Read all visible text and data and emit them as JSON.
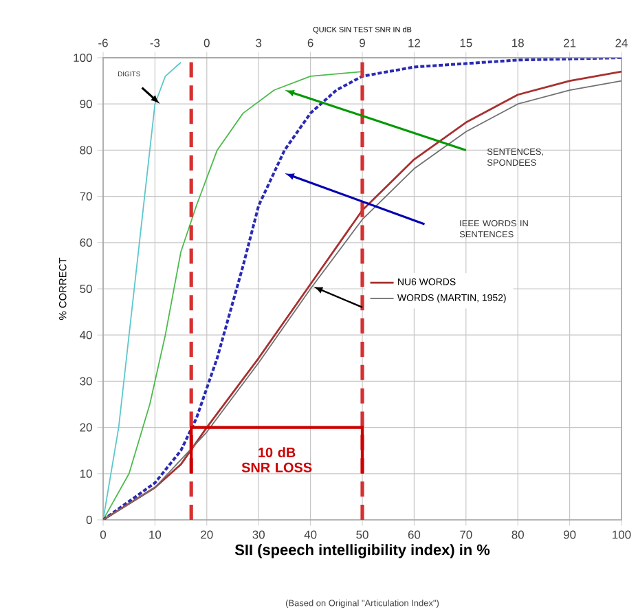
{
  "chart_data": {
    "type": "line",
    "xlabel": "SII (speech intelligibility index) in %",
    "ylabel": "% CORRECT",
    "x2label": "QUICK SIN TEST SNR IN dB",
    "xlim": [
      0,
      100
    ],
    "xticks": [
      0,
      10,
      20,
      30,
      40,
      50,
      60,
      70,
      80,
      90,
      100
    ],
    "ylim": [
      0,
      100
    ],
    "yticks": [
      0,
      10,
      20,
      30,
      40,
      50,
      60,
      70,
      80,
      90,
      100
    ],
    "x2lim": [
      -6,
      24
    ],
    "x2ticks": [
      -6,
      -3,
      0,
      3,
      6,
      9,
      12,
      15,
      18,
      21,
      24
    ],
    "grid": true,
    "legend": "right",
    "series": [
      {
        "color": "#5cc8cc",
        "x": [
          0,
          3,
          5,
          7,
          8,
          9,
          10,
          12,
          15
        ],
        "values": [
          0,
          20,
          40,
          60,
          70,
          80,
          90,
          96,
          99
        ]
      },
      {
        "color": "#4cbb4c",
        "x": [
          0,
          5,
          9,
          12,
          15,
          18,
          22,
          27,
          33,
          40,
          50
        ],
        "values": [
          0,
          10,
          25,
          40,
          58,
          68,
          80,
          88,
          93,
          96,
          97
        ]
      },
      {
        "color": "#2a2ab4",
        "line_style": "dashed",
        "x": [
          0,
          10,
          15,
          18,
          22,
          27,
          30,
          35,
          40,
          45,
          50,
          60,
          80,
          100
        ],
        "values": [
          0,
          8,
          15,
          22,
          35,
          55,
          68,
          80,
          88,
          93,
          96,
          98,
          99.5,
          100
        ]
      },
      {
        "name": "NU6 WORDS",
        "color": "#a83030",
        "x": [
          0,
          10,
          15,
          20,
          30,
          40,
          50,
          60,
          70,
          80,
          90,
          100
        ],
        "values": [
          0,
          7,
          12,
          20,
          35,
          51,
          67,
          78,
          86,
          92,
          95,
          97
        ]
      },
      {
        "name": "WORDS (MARTIN, 1952)",
        "color": "#707070",
        "x": [
          0,
          10,
          20,
          30,
          40,
          50,
          60,
          70,
          80,
          90,
          100
        ],
        "values": [
          0,
          7,
          19,
          34,
          50,
          65,
          76,
          84,
          90,
          93,
          95
        ]
      }
    ],
    "ref_lines": [
      {
        "axis": "x",
        "value": 17,
        "color": "#d63030",
        "line_style": "dashed"
      },
      {
        "axis": "x",
        "value": 50,
        "color": "#d63030",
        "line_style": "dashed"
      }
    ],
    "annotations": [
      "DIGITS",
      "SENTENCES, SPONDEES",
      "IEEE WORDS IN SENTENCES",
      "10 dB SNR LOSS",
      "(Based on Original \"Articulation Index\")"
    ]
  }
}
